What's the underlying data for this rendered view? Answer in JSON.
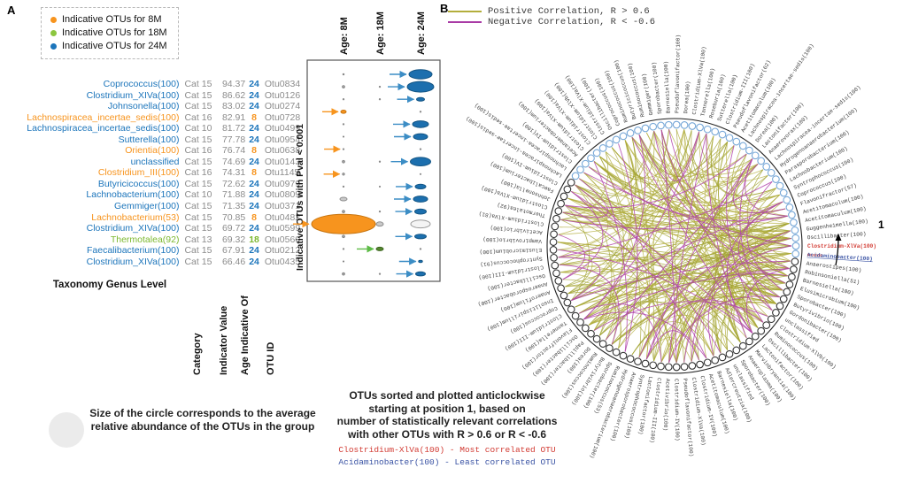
{
  "panelA": {
    "label": "A",
    "legend": [
      {
        "label": "Indicative OTUs for 8M",
        "color": "#F7941E"
      },
      {
        "label": "Indicative OTUs for 18M",
        "color": "#8CC63F"
      },
      {
        "label": "Indicative OTUs for 24M",
        "color": "#1C75BB"
      }
    ],
    "headers": {
      "taxonomy": "Taxonomy Genus Level",
      "category": "Category",
      "indicator": "Indicator Value",
      "age": "Age Indicative Of",
      "otu": "OTU ID"
    },
    "caption": "Size of the circle corresponds to the average relative abundance of the OTUs in the group",
    "age_colors": {
      "8": "#F7941E",
      "18": "#7CB82F",
      "24": "#1C75BB"
    }
  },
  "panelB": {
    "label": "B",
    "legend": [
      {
        "label": "Positive Correlation, R > 0.6",
        "color": "#B3AE3C"
      },
      {
        "label": "Negative Correlation, R < -0.6",
        "color": "#A93BA5"
      }
    ],
    "position_marker": "1",
    "caption_lines": [
      "OTUs sorted and plotted anticlockwise",
      "starting at position 1, based on",
      "number of statistically relevant correlations",
      "with other OTUs with R > 0.6 or R < -0.6"
    ],
    "caption_most": "Clostridium-XlVa(100) - Most correlated OTU",
    "caption_least": "Acidaminobacter(100) - Least correlated OTU",
    "most_color": "#D23B33",
    "least_color": "#3A53A4",
    "highlight_otu_id": "Otu0126"
  },
  "chart_data": [
    {
      "type": "table",
      "title": "Indicative OTUs with Pval < 0.001",
      "columns": [
        "Taxonomy Genus Level",
        "Category",
        "Indicator Value",
        "Age Indicative Of",
        "OTU ID"
      ],
      "rows": [
        [
          "Coprococcus(100)",
          "24",
          "Cat 15",
          "94.37",
          "24",
          "Otu0834"
        ],
        [
          "Clostridium_XIVa(100)",
          "24",
          "Cat 15",
          "86.62",
          "24",
          "Otu0126"
        ],
        [
          "Johnsonella(100)",
          "24",
          "Cat 15",
          "83.02",
          "24",
          "Otu0274"
        ],
        [
          "Lachnospiracea_incertae_sedis(100)",
          "8",
          "Cat 16",
          "82.91",
          "8",
          "Otu0728"
        ],
        [
          "Lachnospiracea_incertae_sedis(100)",
          "24",
          "Cat 10",
          "81.72",
          "24",
          "Otu0499"
        ],
        [
          "Sutterella(100)",
          "24",
          "Cat 15",
          "77.78",
          "24",
          "Otu0954"
        ],
        [
          "Orientia(100)",
          "8",
          "Cat 16",
          "76.74",
          "8",
          "Otu0638"
        ],
        [
          "unclassified",
          "24",
          "Cat 15",
          "74.69",
          "24",
          "Otu0143"
        ],
        [
          "Clostridium_III(100)",
          "8",
          "Cat 16",
          "74.31",
          "8",
          "Otu1145"
        ],
        [
          "Butyricicoccus(100)",
          "24",
          "Cat 15",
          "72.62",
          "24",
          "Otu0979"
        ],
        [
          "Lachnobacterium(100)",
          "24",
          "Cat 10",
          "71.88",
          "24",
          "Otu0809"
        ],
        [
          "Gemmiger(100)",
          "24",
          "Cat 15",
          "71.35",
          "24",
          "Otu0371"
        ],
        [
          "Lachnobacterium(53)",
          "8",
          "Cat 15",
          "70.85",
          "8",
          "Otu0482"
        ],
        [
          "Clostridium_XIVa(100)",
          "24",
          "Cat 15",
          "69.72",
          "24",
          "Otu0599"
        ],
        [
          "Thermotalea(92)",
          "18",
          "Cat 13",
          "69.32",
          "18",
          "Otu0560"
        ],
        [
          "Faecalibacterium(100)",
          "24",
          "Cat 15",
          "67.91",
          "24",
          "Otu0212"
        ],
        [
          "Clostridium_XIVa(100)",
          "24",
          "Cat 15",
          "66.46",
          "24",
          "Otu0435"
        ]
      ]
    },
    {
      "type": "bubble",
      "columns": [
        "Age: 8M",
        "Age: 18M",
        "Age: 24M"
      ],
      "y_label": "Indicative OTUs with Pval < 0.001",
      "note": "ellipse size = average relative abundance; arrow marks the indicative age group",
      "rows": [
        {
          "cells": [
            [
              1,
              0,
              "dot"
            ],
            null,
            [
              13,
              5.2,
              "blue"
            ]
          ],
          "arrow": [
            2,
            "blue"
          ]
        },
        {
          "cells": [
            [
              1.6,
              0,
              "dot"
            ],
            [
              0.9,
              0,
              "dot"
            ],
            [
              15,
              6,
              "blue"
            ]
          ],
          "arrow": [
            2,
            "blue"
          ]
        },
        {
          "cells": [
            [
              0.9,
              0,
              "dot"
            ],
            [
              0.9,
              0,
              "dot"
            ],
            [
              4.5,
              2,
              "blue"
            ]
          ],
          "arrow": [
            2,
            "blue"
          ]
        },
        {
          "cells": [
            [
              3,
              1.8,
              "orange"
            ],
            null,
            [
              0.9,
              0,
              "dot"
            ]
          ],
          "arrow": [
            0,
            "orange"
          ]
        },
        {
          "cells": [
            [
              0.9,
              0,
              "dot"
            ],
            null,
            [
              9,
              3.8,
              "blue"
            ]
          ],
          "arrow": [
            2,
            "blue"
          ]
        },
        {
          "cells": [
            [
              0.8,
              0,
              "dot"
            ],
            null,
            [
              8,
              3.4,
              "blue"
            ]
          ],
          "arrow": [
            2,
            "blue"
          ]
        },
        {
          "cells": [
            [
              0.9,
              0,
              "dot"
            ],
            null,
            [
              0.9,
              0,
              "dot"
            ]
          ],
          "arrow": [
            0,
            "orange"
          ]
        },
        {
          "cells": [
            [
              1.6,
              0,
              "dot"
            ],
            [
              0.9,
              0,
              "dot"
            ],
            [
              11.5,
              4.8,
              "blue"
            ]
          ],
          "arrow": [
            2,
            "blue"
          ]
        },
        {
          "cells": [
            [
              1.4,
              0,
              "dot"
            ],
            null,
            [
              0.8,
              0,
              "dot"
            ]
          ],
          "arrow": [
            0,
            "orange"
          ]
        },
        {
          "cells": [
            [
              0.9,
              0,
              "dot"
            ],
            [
              0.8,
              0,
              "dot"
            ],
            [
              6,
              2.6,
              "blue"
            ]
          ],
          "arrow": [
            2,
            "blue"
          ]
        },
        {
          "cells": [
            [
              4,
              2,
              "gray"
            ],
            null,
            [
              8,
              3.4,
              "blue"
            ]
          ],
          "arrow": [
            2,
            "blue"
          ]
        },
        {
          "cells": [
            [
              1.6,
              0,
              "dot"
            ],
            [
              0.9,
              0,
              "dot"
            ],
            [
              6.5,
              2.9,
              "blue"
            ]
          ],
          "arrow": [
            2,
            "blue"
          ]
        },
        {
          "cells": [
            [
              36,
              11,
              "orange"
            ],
            [
              4,
              2.4,
              "gray"
            ],
            [
              11,
              4.4,
              "white"
            ]
          ],
          "arrow": [
            0,
            "orange"
          ]
        },
        {
          "cells": [
            [
              1.6,
              0,
              "dot"
            ],
            null,
            [
              6.5,
              2.6,
              "blue"
            ]
          ],
          "arrow": [
            2,
            "blue"
          ]
        },
        {
          "cells": [
            [
              0.9,
              0,
              "dot"
            ],
            [
              4,
              2,
              "green"
            ],
            [
              0.9,
              0,
              "dot"
            ]
          ],
          "arrow": [
            1,
            "green"
          ]
        },
        {
          "cells": [
            [
              0.8,
              0,
              "dot"
            ],
            null,
            [
              2.2,
              1.2,
              "blue"
            ]
          ],
          "arrow": [
            2,
            "blue"
          ]
        },
        {
          "cells": [
            [
              1.6,
              0,
              "dot"
            ],
            [
              0.9,
              0,
              "dot"
            ],
            [
              5.5,
              2.3,
              "blue"
            ]
          ],
          "arrow": [
            2,
            "blue"
          ]
        }
      ]
    },
    {
      "type": "network-circular",
      "sort_rule": "anticlockwise from position 1 by number of correlations",
      "positive_rule": "R > 0.6",
      "negative_rule": "R < -0.6",
      "most_correlated": "Clostridium-XlVa(100)",
      "least_correlated": "Acidaminobacter(100)",
      "labels_clockwise_from_position1": [
        "Clostridium-XlVa(100)",
        "Acidaminobacter(100)",
        "Anaerostipes(100)",
        "Robinsoniella(51)",
        "Barnesiella(100)",
        "Elusimicrobium(100)",
        "Sporobacter(100)",
        "Butyrivibrio(100)",
        "Gordonibacter(100)",
        "unclassified",
        "Clostridium-XlVb(100)",
        "Ruminococcus(100)",
        "Oscillibacter(100)",
        "Lactonifactor(100)",
        "Marvinbryantia(100)",
        "Anaeroplasma(100)",
        "Sporobacter(100)",
        "unclassified",
        "Adlercreutzia(100)",
        "Barnesiella(100)",
        "Acetitomaculum(100)",
        "Clostridium-IV(100)",
        "Clostridium-XlVa(100)",
        "Pseudoflavonifactor(100)",
        "Clostridium-IV(100)",
        "Acetivibrio(100)",
        "Clostridium-III(100)",
        "Lactonifactor(100)",
        "Syntrophococcus(100)",
        "Anaerosporobacter(100)",
        "Hydrogenoanaerobacterium(100)",
        "Ruminococcus(53)",
        "Sporobacter(100)",
        "Butyrivibrio(100)",
        "Ruminococcus(100)",
        "Dorea(100)",
        "Papillibacter(100)",
        "Oscillibacter(100)",
        "Flavonifractor(100)",
        "Tannerella(100)",
        "Clostridium-III(100)",
        "Coprococcus(100)",
        "Insolitispirillum(100)",
        "Anaerofilum(100)",
        "Anaerosporobacter(100)",
        "Oscillibacter(100)",
        "Clostridium-III(100)",
        "Syntrophococcus(91)",
        "Elusimicrobium(100)",
        "Vampirovibrio(100)",
        "Acetivibrio(100)",
        "Clostridium-XlVa(81)",
        "Thermotalea(92)",
        "Clostridium-XlVa(100)",
        "Johnsonella(100)",
        "Faecalibacterium(100)",
        "Clostridium-IV(100)",
        "Lachnospiracea-incertae-sedis(100)",
        "Lachnospiracea-incertae-sedis(100)",
        "Clostridium-IV(100)",
        "Acetanaerobacterium(100)",
        "Clostridium-XlVa(100)",
        "Clostridium-XlVa(100)",
        "Clostridium-XlVb(100)",
        "Clostridium-XlVa(100)",
        "Oscillibacter(100)",
        "Coprococcus(100)",
        "Ruminococcus(100)",
        "Butyricicoccus(100)",
        "Ruminococcus(100)",
        "Gemmiger(100)",
        "Sporobacter(100)",
        "Barnesiella(100)",
        "Pseudoflavonifactor(100)",
        "Dorea(100)",
        "Clostridium-XlVa(100)",
        "Tannerella(100)",
        "Roseburia(100)",
        "Sutterella(100)",
        "Clostridium-III(100)",
        "Pseudoflavonifactor(62)",
        "Acetitomaculum(100)",
        "Lachnospiracea-incertae-sedis(100)",
        "Dorea(100)",
        "Lactonifactor(100)",
        "Anaerovorax(100)",
        "Lachnospiracea-incertae-sedis(100)",
        "Hydrogenoanaerobacterium(100)",
        "Parasporobacterium(100)",
        "Lachnobacterium(100)",
        "Syntrophococcus(100)",
        "Coprococcus(100)",
        "Flavonifractor(57)",
        "Acetitomaculum(100)",
        "Acetitomaculum(100)",
        "Guggenheimella(100)",
        "Oscillibacter(100)"
      ],
      "chords": {
        "seed": 42,
        "positive": 165,
        "hub": 85,
        "negative": 52,
        "positive_colors": [
          "#B3AE3C",
          "#9FA12E"
        ],
        "negative_color": "#B145AC"
      }
    }
  ]
}
